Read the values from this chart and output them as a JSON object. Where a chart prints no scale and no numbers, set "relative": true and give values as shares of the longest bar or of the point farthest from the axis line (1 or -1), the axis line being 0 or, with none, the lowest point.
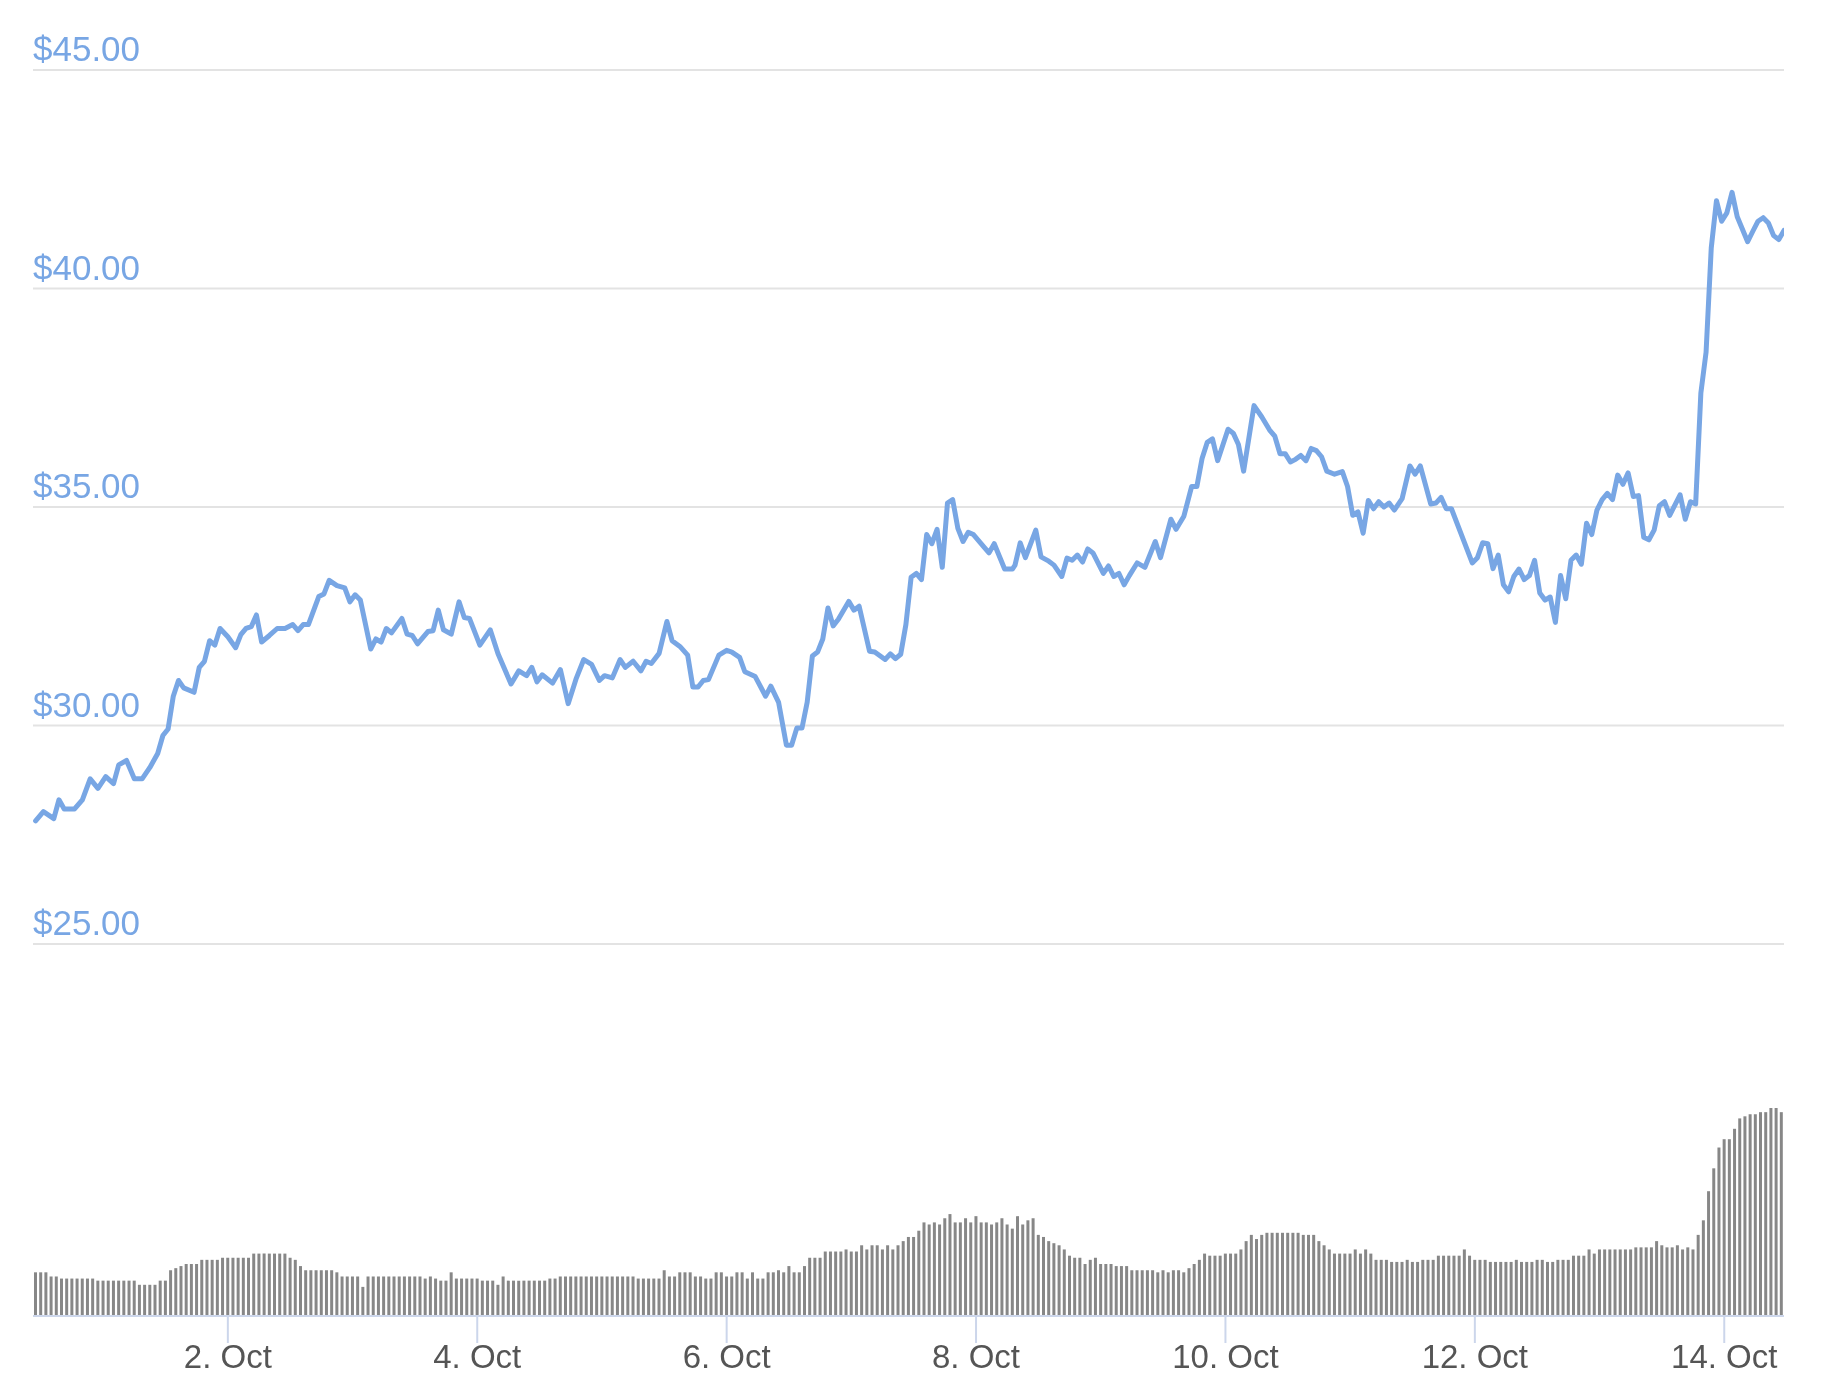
{
  "chart_data": [
    {
      "type": "line",
      "x": [
        "--09-30T11:00",
        "--09-30T12:30",
        "--09-30T14:30",
        "--09-30T15:30",
        "--09-30T16:30",
        "--09-30T18:30",
        "--09-30T20:00",
        "--09-30T21:30",
        "--09-30T23:00",
        "--10-01T00:30",
        "--10-01T02:00",
        "--10-01T03:00",
        "--10-01T04:30",
        "--10-01T06:00",
        "--10-01T07:30",
        "--10-01T09:00",
        "--10-01T10:30",
        "--10-01T11:30",
        "--10-01T12:30",
        "--10-01T13:30",
        "--10-01T14:30",
        "--10-01T15:30",
        "--10-01T17:30",
        "--10-01T18:30",
        "--10-01T19:30",
        "--10-01T20:30",
        "--10-01T21:30",
        "--10-01T22:30",
        "--10-02T00:00",
        "--10-02T01:30",
        "--10-02T02:30",
        "--10-02T03:30",
        "--10-02T04:30",
        "--10-02T05:30",
        "--10-02T06:30",
        "--10-02T08:00",
        "--10-02T09:30",
        "--10-02T11:00",
        "--10-02T12:30",
        "--10-02T13:30",
        "--10-02T14:30",
        "--10-02T15:30",
        "--10-02T17:30",
        "--10-02T18:30",
        "--10-02T19:30",
        "--10-02T21:00",
        "--10-02T22:30",
        "--10-02T23:30",
        "--10-03T00:30",
        "--10-03T01:30",
        "--10-03T03:30",
        "--10-03T04:30",
        "--10-03T05:30",
        "--10-03T06:30",
        "--10-03T07:30",
        "--10-03T09:30",
        "--10-03T10:30",
        "--10-03T11:30",
        "--10-03T12:30",
        "--10-03T14:30",
        "--10-03T15:30",
        "--10-03T16:30",
        "--10-03T17:30",
        "--10-03T19:00",
        "--10-03T20:30",
        "--10-03T21:30",
        "--10-03T22:30",
        "--10-04T00:30",
        "--10-04T02:30",
        "--10-04T04:00",
        "--10-04T06:30",
        "--10-04T08:00",
        "--10-04T09:30",
        "--10-04T10:30",
        "--10-04T11:30",
        "--10-04T12:30",
        "--10-04T14:30",
        "--10-04T16:00",
        "--10-04T17:30",
        "--10-04T19:00",
        "--10-04T20:30",
        "--10-04T22:00",
        "--10-04T23:30",
        "--10-05T00:30",
        "--10-05T02:00",
        "--10-05T03:30",
        "--10-05T04:30",
        "--10-05T06:00",
        "--10-05T07:30",
        "--10-05T08:30",
        "--10-05T09:30",
        "--10-05T11:00",
        "--10-05T12:30",
        "--10-05T13:30",
        "--10-05T15:00",
        "--10-05T16:30",
        "--10-05T17:30",
        "--10-05T18:30",
        "--10-05T19:30",
        "--10-05T20:30",
        "--10-05T22:30",
        "--10-06T00:00",
        "--10-06T01:00",
        "--10-06T02:30",
        "--10-06T03:30",
        "--10-06T05:30",
        "--10-06T07:30",
        "--10-06T08:30",
        "--10-06T10:00",
        "--10-06T11:30",
        "--10-06T12:30",
        "--10-06T13:30",
        "--10-06T14:30",
        "--10-06T15:30",
        "--10-06T16:30",
        "--10-06T17:30",
        "--10-06T18:30",
        "--10-06T19:30",
        "--10-06T20:30",
        "--10-06T21:30",
        "--10-06T23:30",
        "--10-07T00:30",
        "--10-07T01:30",
        "--10-07T03:30",
        "--10-07T04:30",
        "--10-07T06:30",
        "--10-07T07:30",
        "--10-07T08:30",
        "--10-07T09:30",
        "--10-07T10:30",
        "--10-07T11:30",
        "--10-07T12:30",
        "--10-07T13:30",
        "--10-07T14:30",
        "--10-07T15:30",
        "--10-07T16:30",
        "--10-07T17:30",
        "--10-07T18:30",
        "--10-07T19:30",
        "--10-07T20:30",
        "--10-07T21:30",
        "--10-07T22:30",
        "--10-07T23:30",
        "--10-08T01:30",
        "--10-08T02:30",
        "--10-08T03:30",
        "--10-08T05:30",
        "--10-08T07:00",
        "--10-08T07:30",
        "--10-08T08:30",
        "--10-08T09:30",
        "--10-08T11:30",
        "--10-08T12:30",
        "--10-08T14:00",
        "--10-08T15:00",
        "--10-08T16:30",
        "--10-08T17:30",
        "--10-08T18:30",
        "--10-08T19:30",
        "--10-08T20:30",
        "--10-08T21:30",
        "--10-08T22:30",
        "--10-09T00:30",
        "--10-09T01:30",
        "--10-09T02:30",
        "--10-09T03:30",
        "--10-09T04:30",
        "--10-09T05:30",
        "--10-09T07:00",
        "--10-09T08:30",
        "--10-09T10:30",
        "--10-09T11:30",
        "--10-09T13:30",
        "--10-09T14:30",
        "--10-09T16:00",
        "--10-09T17:30",
        "--10-09T18:30",
        "--10-09T19:30",
        "--10-09T20:30",
        "--10-09T21:30",
        "--10-09T22:30",
        "--10-10T00:30",
        "--10-10T01:30",
        "--10-10T02:30",
        "--10-10T03:30",
        "--10-10T05:30",
        "--10-10T07:00",
        "--10-10T08:30",
        "--10-10T09:30",
        "--10-10T10:30",
        "--10-10T11:30",
        "--10-10T12:30",
        "--10-10T13:30",
        "--10-10T14:30",
        "--10-10T15:30",
        "--10-10T16:30",
        "--10-10T17:30",
        "--10-10T18:30",
        "--10-10T19:30",
        "--10-10T21:00",
        "--10-10T22:30",
        "--10-10T23:30",
        "--10-11T00:30",
        "--10-11T01:30",
        "--10-11T02:30",
        "--10-11T03:30",
        "--10-11T04:30",
        "--10-11T05:30",
        "--10-11T06:30",
        "--10-11T07:30",
        "--10-11T08:30",
        "--10-11T10:00",
        "--10-11T11:30",
        "--10-11T12:30",
        "--10-11T13:30",
        "--10-11T15:30",
        "--10-11T16:30",
        "--10-11T17:30",
        "--10-11T18:30",
        "--10-11T19:30",
        "--10-11T23:30",
        "--10-12T00:30",
        "--10-12T01:30",
        "--10-12T02:30",
        "--10-12T03:30",
        "--10-12T04:30",
        "--10-12T05:30",
        "--10-12T06:30",
        "--10-12T07:30",
        "--10-12T08:30",
        "--10-12T09:30",
        "--10-12T10:30",
        "--10-12T11:30",
        "--10-12T12:30",
        "--10-12T13:30",
        "--10-12T14:30",
        "--10-12T15:30",
        "--10-12T16:30",
        "--10-12T17:30",
        "--10-12T18:30",
        "--10-12T19:30",
        "--10-12T20:30",
        "--10-12T21:30",
        "--10-12T22:30",
        "--10-12T23:30",
        "--10-13T00:30",
        "--10-13T01:30",
        "--10-13T02:30",
        "--10-13T03:30",
        "--10-13T04:30",
        "--10-13T05:30",
        "--10-13T06:30",
        "--10-13T07:30",
        "--10-13T08:30",
        "--10-13T09:30",
        "--10-13T10:30",
        "--10-13T11:30",
        "--10-13T12:30",
        "--10-13T13:30",
        "--10-13T15:30",
        "--10-13T16:30",
        "--10-13T17:30",
        "--10-13T18:30",
        "--10-13T19:30",
        "--10-13T20:30",
        "--10-13T21:30",
        "--10-13T22:30",
        "--10-13T23:30",
        "--10-14T00:30",
        "--10-14T01:30",
        "--10-14T02:30",
        "--10-14T04:30",
        "--10-14T05:30",
        "--10-14T06:30",
        "--10-14T07:30",
        "--10-14T08:30",
        "--10-14T09:30",
        "--10-14T10:30",
        "--10-14T11:30"
      ],
      "values": [
        27.82,
        28.03,
        27.87,
        28.3,
        28.09,
        28.09,
        28.3,
        28.78,
        28.56,
        28.83,
        28.67,
        29.1,
        29.2,
        28.78,
        28.78,
        29.04,
        29.36,
        29.77,
        29.92,
        30.67,
        31.03,
        30.86,
        30.76,
        31.33,
        31.47,
        31.94,
        31.84,
        32.22,
        32.03,
        31.78,
        32.08,
        32.22,
        32.26,
        32.53,
        31.91,
        32.06,
        32.22,
        32.22,
        32.31,
        32.17,
        32.31,
        32.31,
        32.95,
        33.01,
        33.32,
        33.2,
        33.15,
        32.83,
        32.99,
        32.87,
        31.75,
        31.98,
        31.91,
        32.22,
        32.12,
        32.45,
        32.09,
        32.06,
        31.87,
        32.15,
        32.17,
        32.64,
        32.19,
        32.09,
        32.83,
        32.47,
        32.45,
        31.84,
        32.19,
        31.64,
        30.95,
        31.25,
        31.14,
        31.33,
        31.0,
        31.16,
        30.97,
        31.28,
        30.5,
        31.06,
        31.51,
        31.4,
        31.03,
        31.14,
        31.09,
        31.51,
        31.33,
        31.47,
        31.25,
        31.47,
        31.42,
        31.65,
        32.38,
        31.94,
        31.81,
        31.61,
        30.88,
        30.88,
        31.03,
        31.05,
        31.61,
        31.72,
        31.68,
        31.56,
        31.23,
        31.12,
        30.67,
        30.9,
        30.53,
        29.55,
        29.55,
        29.94,
        29.94,
        30.53,
        31.59,
        31.68,
        31.98,
        32.69,
        32.28,
        32.43,
        32.84,
        32.64,
        32.73,
        31.7,
        31.68,
        31.51,
        31.64,
        31.53,
        31.63,
        32.31,
        33.39,
        33.48,
        33.34,
        34.37,
        34.16,
        34.49,
        33.62,
        35.09,
        35.17,
        34.51,
        34.21,
        34.42,
        34.37,
        34.09,
        33.95,
        34.16,
        33.58,
        33.58,
        33.67,
        34.18,
        33.84,
        34.47,
        33.86,
        33.76,
        33.67,
        33.41,
        33.83,
        33.78,
        33.9,
        33.74,
        34.04,
        33.95,
        33.48,
        33.65,
        33.41,
        33.48,
        33.22,
        33.43,
        33.72,
        33.62,
        34.21,
        33.84,
        34.72,
        34.49,
        34.79,
        35.47,
        35.47,
        36.11,
        36.48,
        36.56,
        36.06,
        36.78,
        36.69,
        36.43,
        35.82,
        37.32,
        37.06,
        36.76,
        36.62,
        36.22,
        36.22,
        36.03,
        36.09,
        36.18,
        36.06,
        36.34,
        36.29,
        36.15,
        35.82,
        35.75,
        35.81,
        35.47,
        34.81,
        34.89,
        34.4,
        35.15,
        34.96,
        35.12,
        35.0,
        35.09,
        34.93,
        35.19,
        35.94,
        35.75,
        35.94,
        35.07,
        35.09,
        35.22,
        34.96,
        34.96,
        33.72,
        33.84,
        34.18,
        34.16,
        33.59,
        33.9,
        33.22,
        33.06,
        33.41,
        33.58,
        33.34,
        33.43,
        33.78,
        33.03,
        32.87,
        32.94,
        32.36,
        33.43,
        32.9,
        33.78,
        33.9,
        33.69,
        34.63,
        34.37,
        34.93,
        35.17,
        35.31,
        35.17,
        35.73,
        35.52,
        35.78,
        35.24,
        35.26,
        34.31,
        34.25,
        34.47,
        35.03,
        35.12,
        34.81,
        35.28,
        34.72,
        35.12,
        35.07,
        37.61,
        38.54,
        40.93,
        42.01,
        41.54,
        41.73,
        42.2,
        41.64,
        41.07,
        41.31,
        41.54,
        41.62,
        41.5,
        41.21,
        41.12,
        41.33
      ],
      "color": "#78a6e4",
      "xlim": [
        "--09-30T10:30",
        "--10-14T11:30"
      ],
      "ylim": [
        25,
        45
      ],
      "yticks": [
        {
          "value": 25,
          "label": "$25.00"
        },
        {
          "value": 30,
          "label": "$30.00"
        },
        {
          "value": 35,
          "label": "$35.00"
        },
        {
          "value": 40,
          "label": "$40.00"
        },
        {
          "value": 45,
          "label": "$45.00"
        }
      ],
      "grid": "y",
      "tick_labels": "y"
    },
    {
      "type": "bar",
      "x": [
        "--09-30T11:00",
        "--09-30T12:00",
        "--09-30T13:00",
        "--09-30T14:00",
        "--09-30T15:00",
        "--09-30T16:00",
        "--09-30T17:00",
        "--09-30T18:00",
        "--09-30T19:00",
        "--09-30T20:00",
        "--09-30T21:00",
        "--09-30T22:00",
        "--09-30T23:00",
        "--10-01T00:00",
        "--10-01T01:00",
        "--10-01T02:00",
        "--10-01T03:00",
        "--10-01T04:00",
        "--10-01T05:00",
        "--10-01T06:00",
        "--10-01T07:00",
        "--10-01T08:00",
        "--10-01T09:00",
        "--10-01T10:00",
        "--10-01T11:00",
        "--10-01T12:00",
        "--10-01T13:00",
        "--10-01T14:00",
        "--10-01T15:00",
        "--10-01T16:00",
        "--10-01T17:00",
        "--10-01T18:00",
        "--10-01T19:00",
        "--10-01T20:00",
        "--10-01T21:00",
        "--10-01T22:00",
        "--10-01T23:00",
        "--10-02T00:00",
        "--10-02T01:00",
        "--10-02T02:00",
        "--10-02T03:00",
        "--10-02T04:00",
        "--10-02T05:00",
        "--10-02T06:00",
        "--10-02T07:00",
        "--10-02T08:00",
        "--10-02T09:00",
        "--10-02T10:00",
        "--10-02T11:00",
        "--10-02T12:00",
        "--10-02T13:00",
        "--10-02T14:00",
        "--10-02T15:00",
        "--10-02T16:00",
        "--10-02T17:00",
        "--10-02T18:00",
        "--10-02T19:00",
        "--10-02T20:00",
        "--10-02T21:00",
        "--10-02T22:00",
        "--10-02T23:00",
        "--10-03T00:00",
        "--10-03T01:00",
        "--10-03T02:00",
        "--10-03T03:00",
        "--10-03T04:00",
        "--10-03T05:00",
        "--10-03T06:00",
        "--10-03T07:00",
        "--10-03T08:00",
        "--10-03T09:00",
        "--10-03T10:00",
        "--10-03T11:00",
        "--10-03T12:00",
        "--10-03T13:00",
        "--10-03T14:00",
        "--10-03T15:00",
        "--10-03T16:00",
        "--10-03T17:00",
        "--10-03T18:00",
        "--10-03T19:00",
        "--10-03T20:00",
        "--10-03T21:00",
        "--10-03T22:00",
        "--10-03T23:00",
        "--10-04T00:00",
        "--10-04T01:00",
        "--10-04T02:00",
        "--10-04T03:00",
        "--10-04T04:00",
        "--10-04T05:00",
        "--10-04T06:00",
        "--10-04T07:00",
        "--10-04T08:00",
        "--10-04T09:00",
        "--10-04T10:00",
        "--10-04T11:00",
        "--10-04T12:00",
        "--10-04T13:00",
        "--10-04T14:00",
        "--10-04T15:00",
        "--10-04T16:00",
        "--10-04T17:00",
        "--10-04T18:00",
        "--10-04T19:00",
        "--10-04T20:00",
        "--10-04T21:00",
        "--10-04T22:00",
        "--10-04T23:00",
        "--10-05T00:00",
        "--10-05T01:00",
        "--10-05T02:00",
        "--10-05T03:00",
        "--10-05T04:00",
        "--10-05T05:00",
        "--10-05T06:00",
        "--10-05T07:00",
        "--10-05T08:00",
        "--10-05T09:00",
        "--10-05T10:00",
        "--10-05T11:00",
        "--10-05T12:00",
        "--10-05T13:00",
        "--10-05T14:00",
        "--10-05T15:00",
        "--10-05T16:00",
        "--10-05T17:00",
        "--10-05T18:00",
        "--10-05T19:00",
        "--10-05T20:00",
        "--10-05T21:00",
        "--10-05T22:00",
        "--10-05T23:00",
        "--10-06T00:00",
        "--10-06T01:00",
        "--10-06T02:00",
        "--10-06T03:00",
        "--10-06T04:00",
        "--10-06T05:00",
        "--10-06T06:00",
        "--10-06T07:00",
        "--10-06T08:00",
        "--10-06T09:00",
        "--10-06T10:00",
        "--10-06T11:00",
        "--10-06T12:00",
        "--10-06T13:00",
        "--10-06T14:00",
        "--10-06T15:00",
        "--10-06T16:00",
        "--10-06T17:00",
        "--10-06T18:00",
        "--10-06T19:00",
        "--10-06T20:00",
        "--10-06T21:00",
        "--10-06T22:00",
        "--10-06T23:00",
        "--10-07T00:00",
        "--10-07T01:00",
        "--10-07T02:00",
        "--10-07T03:00",
        "--10-07T04:00",
        "--10-07T05:00",
        "--10-07T06:00",
        "--10-07T07:00",
        "--10-07T08:00",
        "--10-07T09:00",
        "--10-07T10:00",
        "--10-07T11:00",
        "--10-07T12:00",
        "--10-07T13:00",
        "--10-07T14:00",
        "--10-07T15:00",
        "--10-07T16:00",
        "--10-07T17:00",
        "--10-07T18:00",
        "--10-07T19:00",
        "--10-07T20:00",
        "--10-07T21:00",
        "--10-07T22:00",
        "--10-07T23:00",
        "--10-08T00:00",
        "--10-08T01:00",
        "--10-08T02:00",
        "--10-08T03:00",
        "--10-08T04:00",
        "--10-08T05:00",
        "--10-08T06:00",
        "--10-08T07:00",
        "--10-08T08:00",
        "--10-08T09:00",
        "--10-08T10:00",
        "--10-08T11:00",
        "--10-08T12:00",
        "--10-08T13:00",
        "--10-08T14:00",
        "--10-08T15:00",
        "--10-08T16:00",
        "--10-08T17:00",
        "--10-08T18:00",
        "--10-08T19:00",
        "--10-08T20:00",
        "--10-08T21:00",
        "--10-08T22:00",
        "--10-08T23:00",
        "--10-09T00:00",
        "--10-09T01:00",
        "--10-09T02:00",
        "--10-09T03:00",
        "--10-09T04:00",
        "--10-09T05:00",
        "--10-09T06:00",
        "--10-09T07:00",
        "--10-09T08:00",
        "--10-09T09:00",
        "--10-09T10:00",
        "--10-09T11:00",
        "--10-09T12:00",
        "--10-09T13:00",
        "--10-09T14:00",
        "--10-09T15:00",
        "--10-09T16:00",
        "--10-09T17:00",
        "--10-09T18:00",
        "--10-09T19:00",
        "--10-09T20:00",
        "--10-09T21:00",
        "--10-09T22:00",
        "--10-09T23:00",
        "--10-10T00:00",
        "--10-10T01:00",
        "--10-10T02:00",
        "--10-10T03:00",
        "--10-10T04:00",
        "--10-10T05:00",
        "--10-10T06:00",
        "--10-10T07:00",
        "--10-10T08:00",
        "--10-10T09:00",
        "--10-10T10:00",
        "--10-10T11:00",
        "--10-10T12:00",
        "--10-10T13:00",
        "--10-10T14:00",
        "--10-10T15:00",
        "--10-10T16:00",
        "--10-10T17:00",
        "--10-10T18:00",
        "--10-10T19:00",
        "--10-10T20:00",
        "--10-10T21:00",
        "--10-10T22:00",
        "--10-10T23:00",
        "--10-11T00:00",
        "--10-11T01:00",
        "--10-11T02:00",
        "--10-11T03:00",
        "--10-11T04:00",
        "--10-11T05:00",
        "--10-11T06:00",
        "--10-11T07:00",
        "--10-11T08:00",
        "--10-11T09:00",
        "--10-11T10:00",
        "--10-11T11:00",
        "--10-11T12:00",
        "--10-11T13:00",
        "--10-11T14:00",
        "--10-11T15:00",
        "--10-11T16:00",
        "--10-11T17:00",
        "--10-11T18:00",
        "--10-11T19:00",
        "--10-11T20:00",
        "--10-11T21:00",
        "--10-11T22:00",
        "--10-11T23:00",
        "--10-12T00:00",
        "--10-12T01:00",
        "--10-12T02:00",
        "--10-12T03:00",
        "--10-12T04:00",
        "--10-12T05:00",
        "--10-12T06:00",
        "--10-12T07:00",
        "--10-12T08:00",
        "--10-12T09:00",
        "--10-12T10:00",
        "--10-12T11:00",
        "--10-12T12:00",
        "--10-12T13:00",
        "--10-12T14:00",
        "--10-12T15:00",
        "--10-12T16:00",
        "--10-12T17:00",
        "--10-12T18:00",
        "--10-12T19:00",
        "--10-12T20:00",
        "--10-12T21:00",
        "--10-12T22:00",
        "--10-12T23:00",
        "--10-13T00:00",
        "--10-13T01:00",
        "--10-13T02:00",
        "--10-13T03:00",
        "--10-13T04:00",
        "--10-13T05:00",
        "--10-13T06:00",
        "--10-13T07:00",
        "--10-13T08:00",
        "--10-13T09:00",
        "--10-13T10:00",
        "--10-13T11:00",
        "--10-13T12:00",
        "--10-13T13:00",
        "--10-13T14:00",
        "--10-13T15:00",
        "--10-13T16:00",
        "--10-13T17:00",
        "--10-13T18:00",
        "--10-13T19:00",
        "--10-13T20:00",
        "--10-13T21:00",
        "--10-13T22:00",
        "--10-13T23:00",
        "--10-14T00:00",
        "--10-14T01:00",
        "--10-14T02:00",
        "--10-14T03:00",
        "--10-14T04:00",
        "--10-14T05:00",
        "--10-14T06:00",
        "--10-14T07:00",
        "--10-14T08:00",
        "--10-14T09:00",
        "--10-14T10:00",
        "--10-14T11:00"
      ],
      "values": [
        0.21,
        0.21,
        0.21,
        0.19,
        0.19,
        0.18,
        0.18,
        0.18,
        0.18,
        0.18,
        0.18,
        0.18,
        0.17,
        0.17,
        0.17,
        0.17,
        0.17,
        0.17,
        0.17,
        0.17,
        0.15,
        0.15,
        0.15,
        0.15,
        0.17,
        0.17,
        0.22,
        0.23,
        0.24,
        0.25,
        0.25,
        0.25,
        0.27,
        0.27,
        0.27,
        0.27,
        0.28,
        0.28,
        0.28,
        0.28,
        0.28,
        0.28,
        0.3,
        0.3,
        0.3,
        0.3,
        0.3,
        0.3,
        0.3,
        0.28,
        0.27,
        0.24,
        0.22,
        0.22,
        0.22,
        0.22,
        0.22,
        0.22,
        0.21,
        0.19,
        0.19,
        0.19,
        0.19,
        0.14,
        0.19,
        0.19,
        0.19,
        0.19,
        0.19,
        0.19,
        0.19,
        0.19,
        0.19,
        0.19,
        0.19,
        0.18,
        0.19,
        0.18,
        0.17,
        0.17,
        0.21,
        0.18,
        0.18,
        0.18,
        0.18,
        0.18,
        0.17,
        0.17,
        0.17,
        0.15,
        0.19,
        0.17,
        0.17,
        0.17,
        0.17,
        0.17,
        0.17,
        0.17,
        0.17,
        0.18,
        0.18,
        0.19,
        0.19,
        0.19,
        0.19,
        0.19,
        0.19,
        0.19,
        0.19,
        0.19,
        0.19,
        0.19,
        0.19,
        0.19,
        0.19,
        0.19,
        0.18,
        0.18,
        0.18,
        0.18,
        0.18,
        0.22,
        0.19,
        0.19,
        0.21,
        0.21,
        0.21,
        0.19,
        0.19,
        0.18,
        0.18,
        0.21,
        0.21,
        0.19,
        0.19,
        0.21,
        0.21,
        0.18,
        0.21,
        0.18,
        0.18,
        0.21,
        0.21,
        0.22,
        0.21,
        0.24,
        0.21,
        0.21,
        0.24,
        0.28,
        0.28,
        0.28,
        0.31,
        0.31,
        0.31,
        0.31,
        0.32,
        0.31,
        0.31,
        0.34,
        0.32,
        0.34,
        0.34,
        0.32,
        0.34,
        0.32,
        0.34,
        0.36,
        0.38,
        0.38,
        0.41,
        0.45,
        0.44,
        0.45,
        0.44,
        0.47,
        0.49,
        0.45,
        0.45,
        0.47,
        0.45,
        0.48,
        0.45,
        0.45,
        0.44,
        0.45,
        0.47,
        0.44,
        0.42,
        0.48,
        0.44,
        0.46,
        0.47,
        0.39,
        0.38,
        0.36,
        0.35,
        0.34,
        0.32,
        0.29,
        0.28,
        0.28,
        0.25,
        0.27,
        0.28,
        0.25,
        0.25,
        0.25,
        0.24,
        0.24,
        0.24,
        0.22,
        0.22,
        0.22,
        0.22,
        0.22,
        0.21,
        0.22,
        0.21,
        0.22,
        0.22,
        0.21,
        0.23,
        0.25,
        0.27,
        0.3,
        0.29,
        0.29,
        0.29,
        0.3,
        0.3,
        0.3,
        0.32,
        0.36,
        0.39,
        0.37,
        0.39,
        0.4,
        0.4,
        0.4,
        0.4,
        0.4,
        0.4,
        0.4,
        0.39,
        0.39,
        0.39,
        0.36,
        0.34,
        0.32,
        0.3,
        0.3,
        0.3,
        0.3,
        0.32,
        0.3,
        0.32,
        0.3,
        0.27,
        0.27,
        0.27,
        0.26,
        0.26,
        0.26,
        0.27,
        0.26,
        0.26,
        0.27,
        0.27,
        0.27,
        0.29,
        0.29,
        0.29,
        0.29,
        0.29,
        0.32,
        0.29,
        0.27,
        0.27,
        0.27,
        0.26,
        0.26,
        0.26,
        0.26,
        0.26,
        0.27,
        0.26,
        0.26,
        0.26,
        0.27,
        0.27,
        0.26,
        0.26,
        0.27,
        0.27,
        0.27,
        0.29,
        0.29,
        0.29,
        0.32,
        0.3,
        0.32,
        0.32,
        0.32,
        0.32,
        0.32,
        0.32,
        0.32,
        0.33,
        0.33,
        0.33,
        0.33,
        0.36,
        0.34,
        0.33,
        0.33,
        0.34,
        0.32,
        0.33,
        0.32,
        0.39,
        0.46,
        0.6,
        0.71,
        0.81,
        0.85,
        0.85,
        0.9,
        0.95,
        0.96,
        0.97,
        0.97,
        0.98,
        0.98,
        1,
        1,
        0.98
      ],
      "color": "#878787",
      "relative": true,
      "xlim": [
        "--09-30T10:30",
        "--10-14T11:30"
      ],
      "xticks": [
        {
          "value": "--10-02",
          "label": "2. Oct"
        },
        {
          "value": "--10-04",
          "label": "4. Oct"
        },
        {
          "value": "--10-06",
          "label": "6. Oct"
        },
        {
          "value": "--10-08",
          "label": "8. Oct"
        },
        {
          "value": "--10-10",
          "label": "10. Oct"
        },
        {
          "value": "--10-12",
          "label": "12. Oct"
        },
        {
          "value": "--10-14",
          "label": "14. Oct"
        }
      ],
      "tick_labels": "x"
    }
  ]
}
